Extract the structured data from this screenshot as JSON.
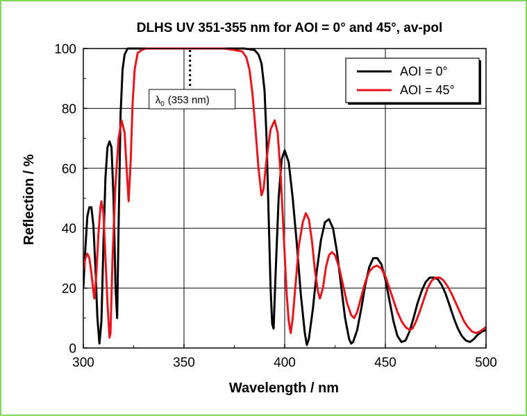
{
  "chart_data": {
    "type": "line",
    "title": "DLHS UV 351-355 nm for AOI = 0° and 45°, av-pol",
    "xlabel": "Wavelength / nm",
    "ylabel": "Reflection / %",
    "xlim": [
      300,
      500
    ],
    "ylim": [
      0,
      100
    ],
    "x_ticks": [
      300,
      350,
      400,
      450,
      500
    ],
    "y_ticks": [
      0,
      20,
      40,
      60,
      80,
      100
    ],
    "grid": true,
    "legend": "top-right",
    "annotation": {
      "symbol": "λ",
      "subscript": "0",
      "text": "(353 nm)",
      "x": 353
    },
    "series": [
      {
        "name": "AOI = 0°",
        "color": "#000000",
        "points": [
          [
            300,
            20
          ],
          [
            301,
            33
          ],
          [
            302,
            44
          ],
          [
            303,
            47
          ],
          [
            304,
            47
          ],
          [
            305,
            41
          ],
          [
            306,
            27
          ],
          [
            307,
            10
          ],
          [
            308,
            1.5
          ],
          [
            309,
            9
          ],
          [
            310,
            35
          ],
          [
            311,
            57
          ],
          [
            312,
            67
          ],
          [
            313,
            69
          ],
          [
            314,
            67
          ],
          [
            315,
            50
          ],
          [
            316,
            20
          ],
          [
            316.8,
            10
          ],
          [
            317.5,
            40
          ],
          [
            318.5,
            78
          ],
          [
            319.5,
            93
          ],
          [
            320.5,
            98
          ],
          [
            322,
            100
          ],
          [
            330,
            100
          ],
          [
            340,
            100
          ],
          [
            350,
            100
          ],
          [
            360,
            100
          ],
          [
            370,
            100
          ],
          [
            380,
            100
          ],
          [
            385,
            99.5
          ],
          [
            387,
            98
          ],
          [
            388.5,
            95
          ],
          [
            390,
            86
          ],
          [
            391,
            70
          ],
          [
            392,
            45
          ],
          [
            393,
            20
          ],
          [
            393.8,
            8
          ],
          [
            394.5,
            6.5
          ],
          [
            395.5,
            25
          ],
          [
            397,
            50
          ],
          [
            398.5,
            63
          ],
          [
            400,
            66
          ],
          [
            402,
            62
          ],
          [
            404,
            50
          ],
          [
            406,
            35
          ],
          [
            408,
            18
          ],
          [
            410,
            5
          ],
          [
            411,
            1
          ],
          [
            412,
            3
          ],
          [
            414,
            13
          ],
          [
            416,
            26
          ],
          [
            418,
            36
          ],
          [
            420,
            42
          ],
          [
            422,
            43
          ],
          [
            424,
            40
          ],
          [
            426,
            32
          ],
          [
            428,
            21
          ],
          [
            430,
            10
          ],
          [
            432,
            3
          ],
          [
            433,
            1.5
          ],
          [
            434,
            2
          ],
          [
            436,
            6
          ],
          [
            438,
            13
          ],
          [
            440,
            21
          ],
          [
            442,
            27
          ],
          [
            444,
            30
          ],
          [
            446,
            30
          ],
          [
            448,
            28
          ],
          [
            450,
            23
          ],
          [
            452,
            16
          ],
          [
            454,
            9
          ],
          [
            456,
            4
          ],
          [
            458,
            2
          ],
          [
            460,
            2.5
          ],
          [
            462,
            5.5
          ],
          [
            464,
            10
          ],
          [
            466,
            15
          ],
          [
            468,
            19
          ],
          [
            470,
            22
          ],
          [
            472,
            23.5
          ],
          [
            474,
            23.5
          ],
          [
            476,
            23
          ],
          [
            478,
            21
          ],
          [
            480,
            18
          ],
          [
            482,
            14
          ],
          [
            484,
            10
          ],
          [
            486,
            6.5
          ],
          [
            488,
            4
          ],
          [
            490,
            2.5
          ],
          [
            492,
            2
          ],
          [
            494,
            3
          ],
          [
            496,
            4.5
          ],
          [
            498,
            5.5
          ],
          [
            500,
            6
          ]
        ]
      },
      {
        "name": "AOI = 45°",
        "color": "#e8141b",
        "points": [
          [
            300,
            26
          ],
          [
            301,
            30
          ],
          [
            302,
            31.5
          ],
          [
            303,
            30
          ],
          [
            304,
            25
          ],
          [
            305,
            19
          ],
          [
            305.5,
            16.5
          ],
          [
            306.5,
            25
          ],
          [
            307.5,
            38
          ],
          [
            308.5,
            47
          ],
          [
            309,
            49
          ],
          [
            310,
            45
          ],
          [
            311,
            30
          ],
          [
            312,
            15
          ],
          [
            313,
            3.5
          ],
          [
            313.5,
            5
          ],
          [
            314.5,
            30
          ],
          [
            316,
            55
          ],
          [
            317.5,
            70
          ],
          [
            319,
            76
          ],
          [
            320.5,
            72
          ],
          [
            321.5,
            60
          ],
          [
            322.5,
            49
          ],
          [
            323.5,
            62
          ],
          [
            324.5,
            82
          ],
          [
            325.5,
            93
          ],
          [
            327,
            98.5
          ],
          [
            329,
            99.5
          ],
          [
            331,
            100
          ],
          [
            340,
            100
          ],
          [
            350,
            100
          ],
          [
            360,
            100
          ],
          [
            370,
            100
          ],
          [
            375,
            99.5
          ],
          [
            379,
            99
          ],
          [
            381,
            97
          ],
          [
            382.5,
            93
          ],
          [
            384,
            85
          ],
          [
            385.5,
            73
          ],
          [
            387,
            60
          ],
          [
            388.5,
            51
          ],
          [
            389.5,
            53
          ],
          [
            391,
            63
          ],
          [
            393,
            73
          ],
          [
            395,
            76
          ],
          [
            396.5,
            72
          ],
          [
            398,
            58
          ],
          [
            399.5,
            38
          ],
          [
            401,
            18
          ],
          [
            402,
            9
          ],
          [
            403,
            5
          ],
          [
            404,
            10
          ],
          [
            405.5,
            22
          ],
          [
            407,
            34
          ],
          [
            409,
            42
          ],
          [
            410.5,
            45
          ],
          [
            412,
            43
          ],
          [
            413.5,
            36
          ],
          [
            415,
            26
          ],
          [
            416.5,
            19
          ],
          [
            417.5,
            16.5
          ],
          [
            419,
            20
          ],
          [
            420.5,
            27
          ],
          [
            422,
            31
          ],
          [
            423.5,
            32
          ],
          [
            425,
            31
          ],
          [
            427,
            27
          ],
          [
            429,
            21
          ],
          [
            431,
            15
          ],
          [
            433,
            11
          ],
          [
            434.5,
            10
          ],
          [
            436,
            12
          ],
          [
            438,
            17
          ],
          [
            440,
            22
          ],
          [
            442,
            25.5
          ],
          [
            444,
            27
          ],
          [
            446,
            27.5
          ],
          [
            448,
            26.5
          ],
          [
            450,
            24
          ],
          [
            452,
            20
          ],
          [
            454,
            16
          ],
          [
            456,
            12
          ],
          [
            458,
            9
          ],
          [
            460,
            7
          ],
          [
            462,
            6
          ],
          [
            463.5,
            6.5
          ],
          [
            465,
            8.5
          ],
          [
            467,
            12
          ],
          [
            469,
            16
          ],
          [
            471,
            20
          ],
          [
            473,
            22.5
          ],
          [
            475,
            23.5
          ],
          [
            477,
            23.5
          ],
          [
            479,
            22.5
          ],
          [
            481,
            20.5
          ],
          [
            483,
            18
          ],
          [
            485,
            15
          ],
          [
            487,
            12
          ],
          [
            489,
            9
          ],
          [
            491,
            7
          ],
          [
            493,
            5.5
          ],
          [
            495,
            5
          ],
          [
            497,
            5.5
          ],
          [
            499,
            6.5
          ],
          [
            500,
            7
          ]
        ]
      }
    ]
  }
}
